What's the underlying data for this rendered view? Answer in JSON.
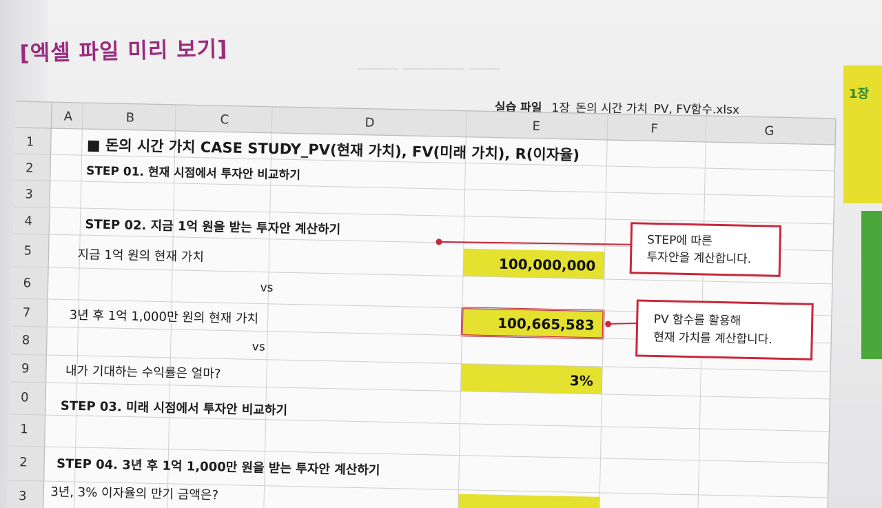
{
  "page_title": "[엑셀 파일 미리 보기]",
  "practice_file": {
    "label": "실습 파일",
    "filename": "1장_돈의 시간 가치_PV, FV함수.xlsx"
  },
  "side_tab_text": "1장",
  "columns": [
    "A",
    "B",
    "C",
    "D",
    "E",
    "F",
    "G"
  ],
  "rows": [
    "1",
    "2",
    "3",
    "4",
    "5",
    "6",
    "7",
    "8",
    "9",
    "0",
    "1",
    "2",
    "3"
  ],
  "cells": {
    "title": "■ 돈의 시간 가치 CASE STUDY_PV(현재 가치), FV(미래 가치), R(이자율)",
    "step01": "STEP 01. 현재 시점에서 투자안 비교하기",
    "step02": "STEP 02. 지금 1억 원을 받는 투자안 계산하기",
    "pv_now_label": "지금 1억 원의 현재 가치",
    "pv_now_value": "100,000,000",
    "vs1": "vs",
    "pv_3y_label": "3년 후 1억 1,000만 원의 현재 가치",
    "pv_3y_value": "100,665,583",
    "vs2": "vs",
    "rate_label": "내가 기대하는 수익률은 얼마?",
    "rate_value": "3%",
    "step03": "STEP 03. 미래 시점에서 투자안 비교하기",
    "step04": "STEP 04. 3년 후 1억 1,000만 원을 받는 투자안 계산하기",
    "maturity_label": "3년, 3% 이자율의 만기 금액은?"
  },
  "callouts": {
    "step_note_line1": "STEP에 따른",
    "step_note_line2": "투자안을 계산합니다.",
    "pv_note_line1": "PV 함수를 활용해",
    "pv_note_line2": "현재 가치를 계산합니다."
  },
  "colors": {
    "title_purple": "#9a2b7e",
    "highlight_yellow": "#e4e12f",
    "callout_red": "#c8283a",
    "tab_green": "#4aa83b"
  }
}
